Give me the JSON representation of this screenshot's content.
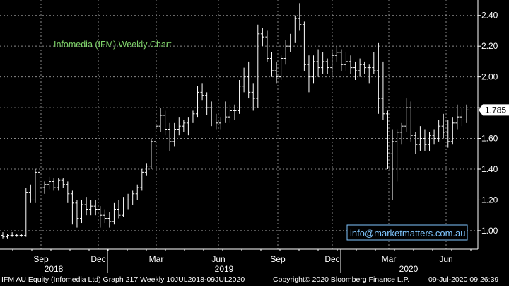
{
  "chart_data": {
    "type": "ohlc",
    "title": "Infomedia (IFM) Weekly Chart",
    "annotation": "info@marketmatters.com.au",
    "last_price": 1.785,
    "last_price_label": "1.785",
    "ylim": [
      0.88,
      2.5
    ],
    "grid": true,
    "y_ticks": [
      "1.00",
      "1.20",
      "1.40",
      "1.60",
      "1.80",
      "2.00",
      "2.20",
      "2.40"
    ],
    "month_labels": [
      "Sep",
      "Dec",
      "Mar",
      "Jun",
      "Sep",
      "Dec",
      "Mar",
      "Jun"
    ],
    "year_labels": [
      "2018",
      "2019",
      "2020"
    ],
    "series": [
      {
        "values": [
          [
            0.97,
            0.99,
            0.95,
            0.96
          ],
          [
            0.96,
            0.98,
            0.95,
            0.97
          ],
          [
            0.97,
            0.99,
            0.96,
            0.97
          ],
          [
            0.97,
            0.98,
            0.96,
            0.97
          ],
          [
            0.97,
            0.98,
            0.96,
            0.97
          ],
          [
            0.97,
            1.28,
            0.96,
            1.25
          ],
          [
            1.25,
            1.3,
            1.18,
            1.2
          ],
          [
            1.2,
            1.4,
            1.18,
            1.38
          ],
          [
            1.38,
            1.4,
            1.25,
            1.28
          ],
          [
            1.28,
            1.32,
            1.24,
            1.3
          ],
          [
            1.3,
            1.35,
            1.27,
            1.32
          ],
          [
            1.32,
            1.34,
            1.26,
            1.28
          ],
          [
            1.28,
            1.34,
            1.26,
            1.33
          ],
          [
            1.33,
            1.34,
            1.28,
            1.3
          ],
          [
            1.3,
            1.32,
            1.18,
            1.24
          ],
          [
            1.24,
            1.26,
            1.04,
            1.18
          ],
          [
            1.18,
            1.2,
            1.02,
            1.08
          ],
          [
            1.08,
            1.2,
            1.05,
            1.17
          ],
          [
            1.17,
            1.22,
            1.1,
            1.14
          ],
          [
            1.14,
            1.2,
            1.1,
            1.16
          ],
          [
            1.16,
            1.2,
            1.1,
            1.14
          ],
          [
            1.14,
            1.16,
            1.02,
            1.1
          ],
          [
            1.1,
            1.14,
            1.05,
            1.08
          ],
          [
            1.08,
            1.12,
            1.02,
            1.06
          ],
          [
            1.06,
            1.18,
            1.04,
            1.14
          ],
          [
            1.14,
            1.2,
            1.08,
            1.1
          ],
          [
            1.1,
            1.22,
            1.09,
            1.2
          ],
          [
            1.2,
            1.24,
            1.14,
            1.2
          ],
          [
            1.2,
            1.26,
            1.17,
            1.24
          ],
          [
            1.24,
            1.3,
            1.2,
            1.28
          ],
          [
            1.28,
            1.4,
            1.26,
            1.38
          ],
          [
            1.38,
            1.44,
            1.36,
            1.42
          ],
          [
            1.42,
            1.6,
            1.4,
            1.58
          ],
          [
            1.58,
            1.72,
            1.55,
            1.68
          ],
          [
            1.68,
            1.8,
            1.64,
            1.75
          ],
          [
            1.75,
            1.78,
            1.62,
            1.66
          ],
          [
            1.66,
            1.7,
            1.52,
            1.58
          ],
          [
            1.58,
            1.7,
            1.55,
            1.66
          ],
          [
            1.66,
            1.74,
            1.62,
            1.68
          ],
          [
            1.68,
            1.72,
            1.64,
            1.7
          ],
          [
            1.7,
            1.74,
            1.62,
            1.72
          ],
          [
            1.72,
            1.78,
            1.7,
            1.76
          ],
          [
            1.76,
            1.94,
            1.74,
            1.9
          ],
          [
            1.9,
            1.96,
            1.85,
            1.88
          ],
          [
            1.88,
            1.9,
            1.75,
            1.8
          ],
          [
            1.8,
            1.84,
            1.68,
            1.72
          ],
          [
            1.72,
            1.76,
            1.66,
            1.7
          ],
          [
            1.7,
            1.74,
            1.66,
            1.72
          ],
          [
            1.72,
            1.84,
            1.7,
            1.74
          ],
          [
            1.74,
            1.82,
            1.7,
            1.78
          ],
          [
            1.78,
            1.82,
            1.72,
            1.78
          ],
          [
            1.78,
            1.98,
            1.76,
            1.94
          ],
          [
            1.94,
            2.06,
            1.9,
            2.0
          ],
          [
            2.0,
            2.1,
            1.86,
            1.9
          ],
          [
            1.9,
            1.96,
            1.78,
            1.86
          ],
          [
            1.86,
            2.34,
            1.8,
            2.28
          ],
          [
            2.28,
            2.32,
            2.2,
            2.26
          ],
          [
            2.26,
            2.3,
            2.1,
            2.12
          ],
          [
            2.12,
            2.16,
            2.0,
            2.04
          ],
          [
            2.04,
            2.1,
            1.96,
            2.0
          ],
          [
            2.0,
            2.14,
            1.98,
            2.12
          ],
          [
            2.12,
            2.24,
            2.08,
            2.2
          ],
          [
            2.2,
            2.28,
            2.16,
            2.24
          ],
          [
            2.24,
            2.4,
            2.22,
            2.38
          ],
          [
            2.38,
            2.48,
            2.3,
            2.34
          ],
          [
            2.34,
            2.36,
            2.04,
            2.08
          ],
          [
            2.08,
            2.14,
            1.9,
            2.0
          ],
          [
            2.0,
            2.14,
            1.96,
            2.1
          ],
          [
            2.1,
            2.18,
            2.0,
            2.06
          ],
          [
            2.06,
            2.16,
            2.02,
            2.1
          ],
          [
            2.1,
            2.12,
            2.02,
            2.06
          ],
          [
            2.06,
            2.18,
            2.02,
            2.14
          ],
          [
            2.14,
            2.2,
            2.1,
            2.16
          ],
          [
            2.16,
            2.18,
            2.04,
            2.08
          ],
          [
            2.08,
            2.16,
            2.04,
            2.1
          ],
          [
            2.1,
            2.14,
            2.02,
            2.06
          ],
          [
            2.06,
            2.1,
            1.98,
            2.04
          ],
          [
            2.04,
            2.12,
            2.0,
            2.08
          ],
          [
            2.08,
            2.1,
            2.02,
            2.06
          ],
          [
            2.06,
            2.08,
            1.96,
            2.06
          ],
          [
            2.06,
            2.16,
            2.02,
            2.04
          ],
          [
            2.04,
            2.22,
            1.76,
            1.86
          ],
          [
            1.86,
            2.1,
            1.72,
            1.76
          ],
          [
            1.76,
            1.78,
            1.4,
            1.5
          ],
          [
            1.5,
            1.66,
            1.2,
            1.58
          ],
          [
            1.58,
            1.66,
            1.32,
            1.64
          ],
          [
            1.64,
            1.7,
            1.56,
            1.68
          ],
          [
            1.68,
            1.86,
            1.64,
            1.8
          ],
          [
            1.8,
            1.84,
            1.58,
            1.62
          ],
          [
            1.62,
            1.64,
            1.5,
            1.56
          ],
          [
            1.56,
            1.68,
            1.52,
            1.6
          ],
          [
            1.6,
            1.66,
            1.52,
            1.56
          ],
          [
            1.56,
            1.64,
            1.52,
            1.62
          ],
          [
            1.62,
            1.66,
            1.56,
            1.6
          ],
          [
            1.6,
            1.72,
            1.58,
            1.68
          ],
          [
            1.68,
            1.76,
            1.6,
            1.64
          ],
          [
            1.64,
            1.72,
            1.54,
            1.58
          ],
          [
            1.58,
            1.74,
            1.56,
            1.7
          ],
          [
            1.7,
            1.82,
            1.66,
            1.74
          ],
          [
            1.74,
            1.8,
            1.68,
            1.72
          ],
          [
            1.72,
            1.82,
            1.7,
            1.785
          ]
        ]
      }
    ]
  },
  "footer": {
    "left": "IFM AU Equity (Infomedia Ltd) Graph 217  Weekly 10JUL2018-09JUL2020",
    "copyright": "Copyright© 2020 Bloomberg Finance L.P.",
    "timestamp": "09-Jul-2020 09:26:39"
  }
}
